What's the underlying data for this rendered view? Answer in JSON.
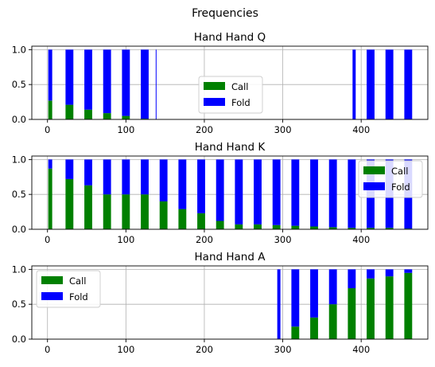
{
  "figure": {
    "title": "Frequencies"
  },
  "chart_data": [
    {
      "type": "bar",
      "stacked": true,
      "title": "Hand Hand Q",
      "xlim": [
        -20,
        485
      ],
      "ylim": [
        0,
        1.05
      ],
      "xticks": [
        0,
        100,
        200,
        300,
        400
      ],
      "yticks": [
        0.0,
        0.5,
        1.0
      ],
      "grid": true,
      "legend_position": "center",
      "series": [
        {
          "name": "Call",
          "color": "#008000"
        },
        {
          "name": "Fold",
          "color": "#0000ff"
        }
      ],
      "bars": [
        {
          "x": 1,
          "width": 5,
          "call": 0.27
        },
        {
          "x": 23,
          "width": 10,
          "call": 0.21
        },
        {
          "x": 47,
          "width": 10,
          "call": 0.14
        },
        {
          "x": 71,
          "width": 10,
          "call": 0.09
        },
        {
          "x": 95,
          "width": 10,
          "call": 0.05
        },
        {
          "x": 119,
          "width": 10,
          "call": 0.01
        },
        {
          "x": 138,
          "width": 1,
          "call": 0.0
        },
        {
          "x": 389,
          "width": 4,
          "call": 0.0
        },
        {
          "x": 407,
          "width": 10,
          "call": 0.0
        },
        {
          "x": 431,
          "width": 10,
          "call": 0.0
        },
        {
          "x": 455,
          "width": 10,
          "call": 0.0
        }
      ]
    },
    {
      "type": "bar",
      "stacked": true,
      "title": "Hand Hand K",
      "xlim": [
        -20,
        485
      ],
      "ylim": [
        0,
        1.05
      ],
      "xticks": [
        0,
        100,
        200,
        300,
        400
      ],
      "yticks": [
        0.0,
        0.5,
        1.0
      ],
      "grid": true,
      "legend_position": "upper right",
      "series": [
        {
          "name": "Call",
          "color": "#008000"
        },
        {
          "name": "Fold",
          "color": "#0000ff"
        }
      ],
      "bars": [
        {
          "x": 1,
          "width": 5,
          "call": 0.87
        },
        {
          "x": 23,
          "width": 10,
          "call": 0.72
        },
        {
          "x": 47,
          "width": 10,
          "call": 0.63
        },
        {
          "x": 71,
          "width": 10,
          "call": 0.5
        },
        {
          "x": 95,
          "width": 10,
          "call": 0.5
        },
        {
          "x": 119,
          "width": 10,
          "call": 0.5
        },
        {
          "x": 143,
          "width": 10,
          "call": 0.4
        },
        {
          "x": 167,
          "width": 10,
          "call": 0.29
        },
        {
          "x": 191,
          "width": 10,
          "call": 0.23
        },
        {
          "x": 215,
          "width": 10,
          "call": 0.12
        },
        {
          "x": 239,
          "width": 10,
          "call": 0.07
        },
        {
          "x": 263,
          "width": 10,
          "call": 0.07
        },
        {
          "x": 287,
          "width": 10,
          "call": 0.06
        },
        {
          "x": 311,
          "width": 10,
          "call": 0.05
        },
        {
          "x": 335,
          "width": 10,
          "call": 0.04
        },
        {
          "x": 359,
          "width": 10,
          "call": 0.03
        },
        {
          "x": 383,
          "width": 10,
          "call": 0.02
        },
        {
          "x": 407,
          "width": 10,
          "call": 0.02
        },
        {
          "x": 431,
          "width": 10,
          "call": 0.02
        },
        {
          "x": 455,
          "width": 10,
          "call": 0.01
        }
      ]
    },
    {
      "type": "bar",
      "stacked": true,
      "title": "Hand Hand A",
      "xlim": [
        -20,
        485
      ],
      "ylim": [
        0,
        1.05
      ],
      "xticks": [
        0,
        100,
        200,
        300,
        400
      ],
      "yticks": [
        0.0,
        0.5,
        1.0
      ],
      "grid": true,
      "legend_position": "upper left",
      "series": [
        {
          "name": "Call",
          "color": "#008000"
        },
        {
          "name": "Fold",
          "color": "#0000ff"
        }
      ],
      "bars": [
        {
          "x": 293,
          "width": 4,
          "call": 0.0
        },
        {
          "x": 311,
          "width": 10,
          "call": 0.18
        },
        {
          "x": 335,
          "width": 10,
          "call": 0.31
        },
        {
          "x": 359,
          "width": 10,
          "call": 0.5
        },
        {
          "x": 383,
          "width": 10,
          "call": 0.73
        },
        {
          "x": 407,
          "width": 10,
          "call": 0.87
        },
        {
          "x": 431,
          "width": 10,
          "call": 0.9
        },
        {
          "x": 455,
          "width": 10,
          "call": 0.95
        }
      ]
    }
  ]
}
